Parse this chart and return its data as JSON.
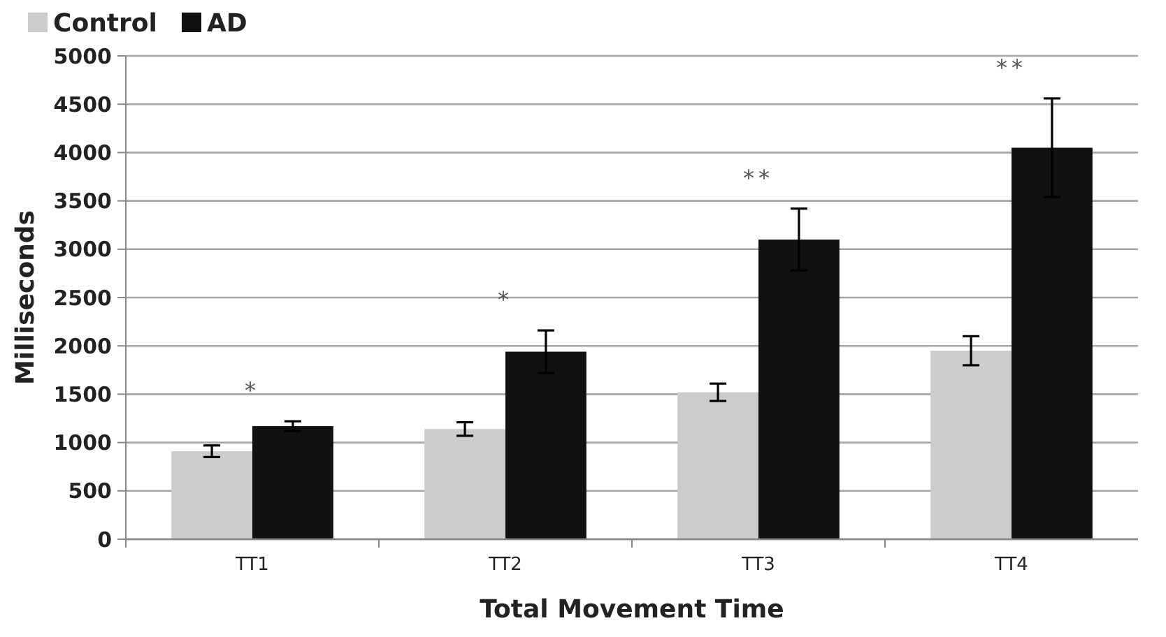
{
  "chart_data": {
    "type": "bar",
    "xlabel": "Total Movement Time",
    "ylabel": "Milliseconds",
    "categories": [
      "TT1",
      "TT2",
      "TT3",
      "TT4"
    ],
    "series": [
      {
        "name": "Control",
        "color": "#cccccc",
        "values": [
          910,
          1140,
          1520,
          1950
        ],
        "errors": [
          60,
          70,
          90,
          150
        ]
      },
      {
        "name": "AD",
        "color": "#111111",
        "values": [
          1170,
          1940,
          3100,
          4050
        ],
        "errors": [
          50,
          220,
          320,
          510
        ]
      }
    ],
    "ylim": [
      0,
      5000
    ],
    "yticks": [
      0,
      500,
      1000,
      1500,
      2000,
      2500,
      3000,
      3500,
      4000,
      4500,
      5000
    ],
    "grid": "y",
    "legend": "top left",
    "annotations": [
      "*",
      "*",
      "**",
      "**"
    ]
  }
}
